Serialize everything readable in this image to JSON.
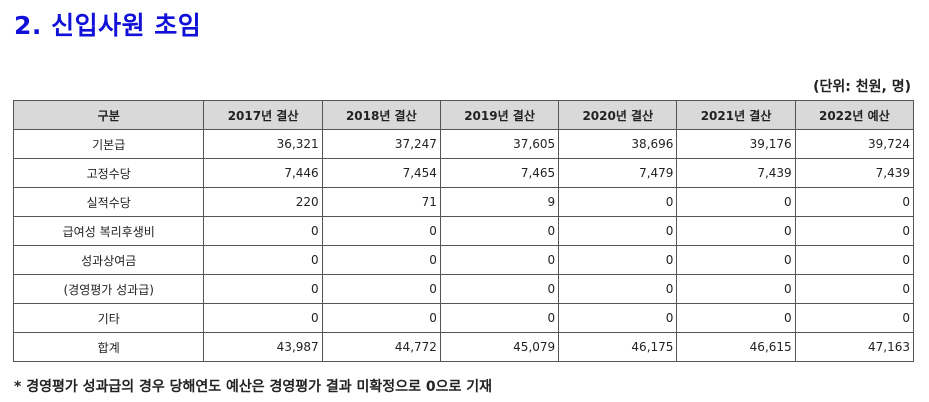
{
  "title": "2. 신입사원 초임",
  "unit_note": "(단위: 천원, 명)",
  "table": {
    "headers": [
      "구분",
      "2017년 결산",
      "2018년 결산",
      "2019년 결산",
      "2020년 결산",
      "2021년 결산",
      "2022년 예산"
    ],
    "rows": [
      {
        "label": "기본급",
        "values": [
          "36,321",
          "37,247",
          "37,605",
          "38,696",
          "39,176",
          "39,724"
        ]
      },
      {
        "label": "고정수당",
        "values": [
          "7,446",
          "7,454",
          "7,465",
          "7,479",
          "7,439",
          "7,439"
        ]
      },
      {
        "label": "실적수당",
        "values": [
          "220",
          "71",
          "9",
          "0",
          "0",
          "0"
        ]
      },
      {
        "label": "급여성 복리후생비",
        "values": [
          "0",
          "0",
          "0",
          "0",
          "0",
          "0"
        ]
      },
      {
        "label": "성과상여금",
        "values": [
          "0",
          "0",
          "0",
          "0",
          "0",
          "0"
        ]
      },
      {
        "label": "(경영평가 성과급)",
        "values": [
          "0",
          "0",
          "0",
          "0",
          "0",
          "0"
        ]
      },
      {
        "label": "기타",
        "values": [
          "0",
          "0",
          "0",
          "0",
          "0",
          "0"
        ]
      },
      {
        "label": "합계",
        "values": [
          "43,987",
          "44,772",
          "45,079",
          "46,175",
          "46,615",
          "47,163"
        ]
      }
    ]
  },
  "footnote": "* 경영평가 성과급의 경우 당해연도 예산은 경영평가 결과 미확정으로 0으로 기재"
}
